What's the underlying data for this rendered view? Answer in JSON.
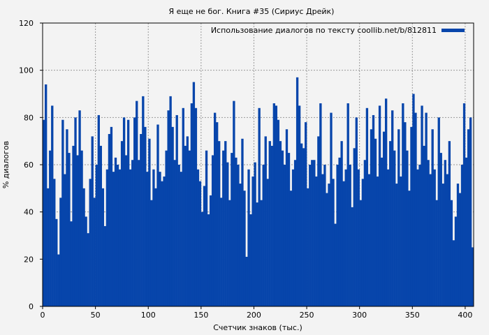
{
  "chart_data": {
    "type": "bar",
    "title": "Я еще не бог. Книга #35 (Сириус Дрейк)",
    "xlabel": "Счетчик знаков (тыс.)",
    "ylabel": "% диалогов",
    "xlim": [
      0,
      408
    ],
    "ylim": [
      0,
      120
    ],
    "xticks": [
      0,
      50,
      100,
      150,
      200,
      250,
      300,
      350,
      400
    ],
    "yticks": [
      0,
      20,
      40,
      60,
      80,
      100,
      120
    ],
    "grid": true,
    "legend_position": "top-right",
    "bar_color": "#0745ab",
    "background": "#f3f3f3",
    "x_step": 2,
    "series": [
      {
        "name": "Использование диалогов по тексту coollib.net/b/812811",
        "values": [
          79,
          94,
          50,
          66,
          85,
          54,
          37,
          22,
          46,
          79,
          56,
          75,
          65,
          36,
          68,
          80,
          64,
          83,
          66,
          50,
          38,
          31,
          54,
          72,
          46,
          60,
          81,
          68,
          50,
          34,
          58,
          73,
          76,
          57,
          63,
          60,
          58,
          70,
          80,
          64,
          79,
          58,
          62,
          80,
          87,
          62,
          73,
          89,
          76,
          57,
          71,
          45,
          58,
          50,
          77,
          57,
          53,
          55,
          66,
          83,
          89,
          76,
          62,
          81,
          60,
          57,
          84,
          68,
          72,
          66,
          86,
          95,
          84,
          58,
          53,
          40,
          51,
          66,
          39,
          47,
          64,
          82,
          78,
          70,
          46,
          66,
          70,
          61,
          45,
          65,
          87,
          63,
          60,
          52,
          71,
          49,
          21,
          58,
          39,
          55,
          61,
          44,
          84,
          45,
          60,
          72,
          54,
          70,
          68,
          86,
          85,
          79,
          70,
          66,
          60,
          75,
          65,
          49,
          58,
          62,
          97,
          85,
          69,
          67,
          78,
          50,
          60,
          62,
          62,
          55,
          72,
          86,
          56,
          60,
          48,
          52,
          82,
          54,
          35,
          60,
          63,
          70,
          53,
          58,
          86,
          60,
          42,
          67,
          80,
          58,
          45,
          54,
          62,
          84,
          56,
          75,
          81,
          71,
          55,
          85,
          63,
          74,
          88,
          58,
          70,
          83,
          66,
          52,
          75,
          55,
          86,
          78,
          66,
          49,
          76,
          90,
          82,
          58,
          60,
          85,
          68,
          82,
          62,
          56,
          75,
          58,
          45,
          80,
          65,
          52,
          62,
          56,
          70,
          45,
          28,
          38,
          52,
          48,
          60,
          86,
          63,
          75,
          80,
          25
        ]
      }
    ]
  }
}
